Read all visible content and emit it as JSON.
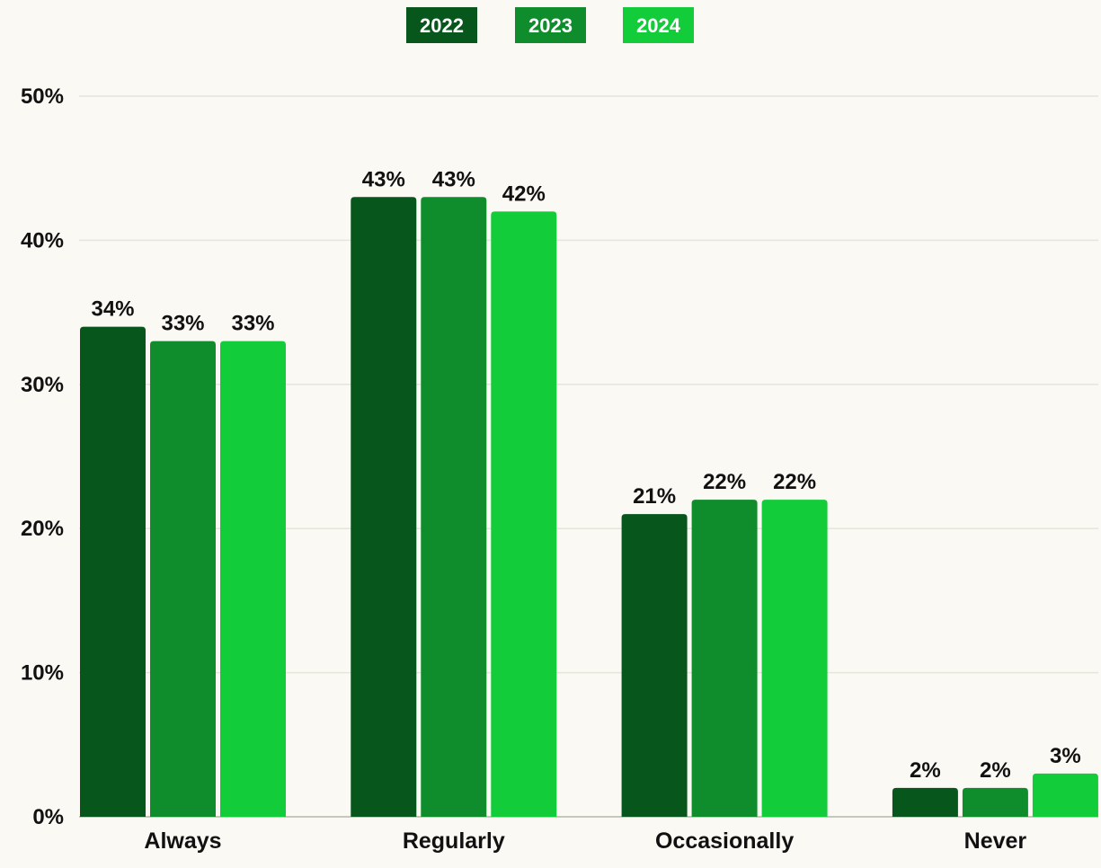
{
  "chart_data": {
    "type": "bar",
    "categories": [
      "Always",
      "Regularly",
      "Occasionally",
      "Never"
    ],
    "series": [
      {
        "name": "2022",
        "color": "#07561c",
        "values": [
          34,
          43,
          21,
          2
        ]
      },
      {
        "name": "2023",
        "color": "#0f8c2b",
        "values": [
          33,
          43,
          22,
          2
        ]
      },
      {
        "name": "2024",
        "color": "#13cc3a",
        "values": [
          33,
          42,
          22,
          3
        ]
      }
    ],
    "value_labels": [
      [
        "34%",
        "43%",
        "21%",
        "2%"
      ],
      [
        "33%",
        "43%",
        "22%",
        "2%"
      ],
      [
        "33%",
        "42%",
        "22%",
        "3%"
      ]
    ],
    "yticks": [
      0,
      10,
      20,
      30,
      40,
      50
    ],
    "ytick_labels": [
      "0%",
      "10%",
      "20%",
      "30%",
      "40%",
      "50%"
    ],
    "ylim": [
      0,
      50
    ],
    "grid": true,
    "legend_position": "top-center"
  }
}
